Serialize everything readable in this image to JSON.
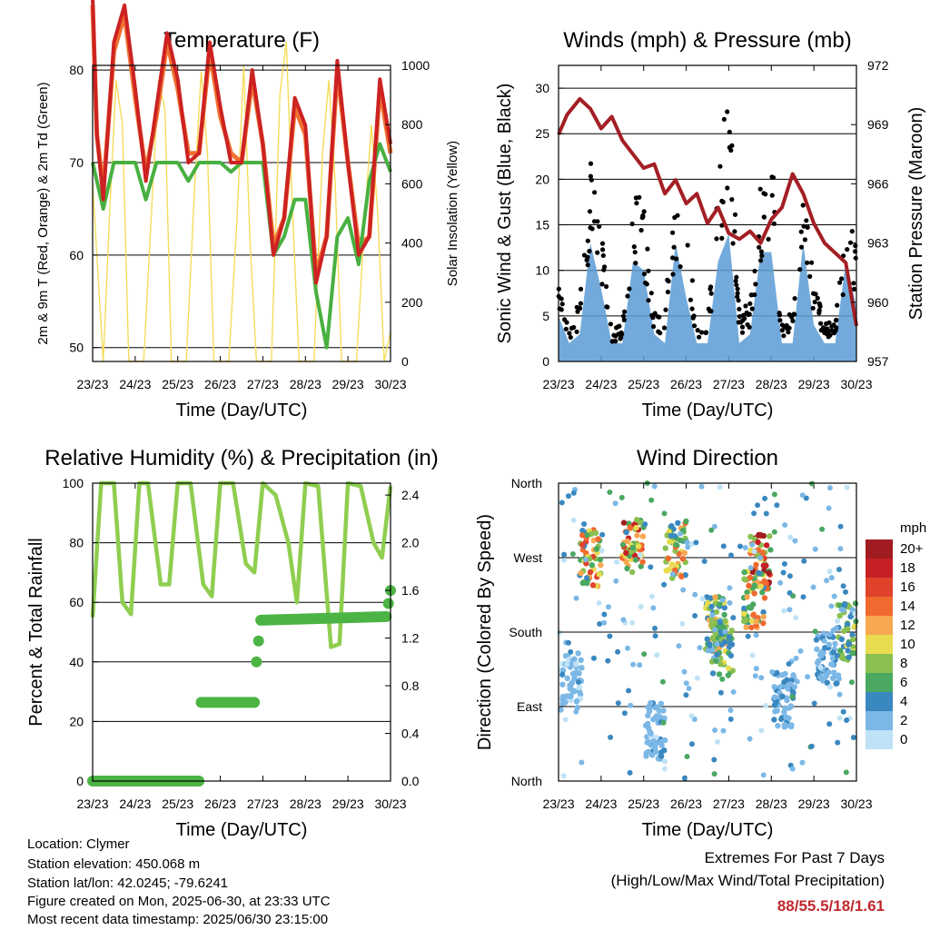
{
  "chart_data": [
    {
      "type": "line",
      "title": "Temperature (F)",
      "xlabel": "Time (Day/UTC)",
      "ylabel": "2m & 9m T (Red, Orange) & 2m Td (Green)",
      "y2label": "Solar Insolation (Yellow)",
      "x_ticks": [
        "23/23",
        "24/23",
        "25/23",
        "26/23",
        "27/23",
        "28/23",
        "29/23",
        "30/23"
      ],
      "xlim": [
        0,
        7
      ],
      "ylim": [
        48.5,
        80.5
      ],
      "y_ticks": [
        50,
        60,
        70,
        80
      ],
      "y2lim": [
        0,
        1000
      ],
      "y2_ticks": [
        0,
        200,
        400,
        600,
        800,
        1000
      ],
      "colors": {
        "t2m": "#cc2222",
        "t9m": "#f07030",
        "td2m": "#48b040",
        "solar": "#f5dc5a"
      },
      "series": [
        {
          "name": "2m T",
          "x": [
            0,
            0.1,
            0.25,
            0.5,
            0.75,
            1.0,
            1.25,
            1.5,
            1.75,
            2.0,
            2.25,
            2.5,
            2.75,
            3.0,
            3.25,
            3.5,
            3.75,
            4.0,
            4.25,
            4.5,
            4.75,
            5.0,
            5.25,
            5.5,
            5.75,
            6.0,
            6.25,
            6.5,
            6.75,
            7.0
          ],
          "values": [
            88,
            73,
            66,
            83,
            87,
            78,
            68,
            76,
            84,
            79,
            70,
            71,
            83,
            76,
            70,
            70,
            80,
            72,
            60,
            64,
            77,
            74,
            57,
            62,
            81,
            70,
            60,
            62,
            79,
            72
          ]
        },
        {
          "name": "9m T",
          "x": [
            0,
            0.1,
            0.25,
            0.5,
            0.75,
            1.0,
            1.25,
            1.5,
            1.75,
            2.0,
            2.25,
            2.5,
            2.75,
            3.0,
            3.25,
            3.5,
            3.75,
            4.0,
            4.25,
            4.5,
            4.75,
            5.0,
            5.25,
            5.5,
            5.75,
            6.0,
            6.25,
            6.5,
            6.75,
            7.0
          ],
          "values": [
            87,
            73,
            67,
            82,
            86,
            77,
            69,
            75,
            83,
            78,
            71,
            71,
            82,
            75,
            71,
            70,
            79,
            72,
            61,
            64,
            76,
            73,
            58,
            62,
            80,
            70,
            61,
            62,
            78,
            71
          ]
        },
        {
          "name": "2m Td",
          "x": [
            0,
            0.25,
            0.5,
            0.75,
            1.0,
            1.25,
            1.5,
            1.75,
            2.0,
            2.25,
            2.5,
            2.75,
            3.0,
            3.25,
            3.5,
            3.75,
            4.0,
            4.25,
            4.5,
            4.75,
            5.0,
            5.25,
            5.5,
            5.75,
            6.0,
            6.25,
            6.5,
            6.75,
            7.0
          ],
          "values": [
            70,
            65,
            70,
            70,
            70,
            66,
            70,
            70,
            70,
            68,
            70,
            70,
            70,
            69,
            70,
            70,
            70,
            60,
            62,
            66,
            66,
            56,
            50,
            62,
            64,
            59,
            68,
            72,
            69
          ]
        },
        {
          "name": "Solar Insolation",
          "axis": "y2",
          "x": [
            0,
            0.25,
            0.4,
            0.55,
            0.7,
            0.85,
            1.2,
            1.4,
            1.55,
            1.7,
            1.85,
            2.2,
            2.4,
            2.55,
            2.7,
            2.85,
            3.2,
            3.4,
            3.55,
            3.7,
            3.85,
            4.2,
            4.4,
            4.55,
            4.7,
            4.85,
            5.2,
            5.4,
            5.55,
            5.7,
            5.85,
            6.2,
            6.4,
            6.55,
            6.7,
            6.85,
            7.0
          ],
          "values": [
            600,
            0,
            500,
            950,
            800,
            0,
            0,
            550,
            950,
            850,
            0,
            0,
            600,
            980,
            700,
            0,
            0,
            500,
            1000,
            400,
            0,
            0,
            900,
            1080,
            500,
            0,
            0,
            700,
            950,
            600,
            0,
            0,
            500,
            800,
            500,
            0,
            100
          ]
        }
      ]
    },
    {
      "type": "scatter",
      "title": "Winds (mph) & Pressure (mb)",
      "xlabel": "Time (Day/UTC)",
      "ylabel": "Sonic Wind & Gust (Blue, Black)",
      "y2label": "Station Pressure (Maroon)",
      "x_ticks": [
        "23/23",
        "24/23",
        "25/23",
        "26/23",
        "27/23",
        "28/23",
        "29/23",
        "30/23"
      ],
      "xlim": [
        0,
        7
      ],
      "ylim": [
        0,
        32.5
      ],
      "y_ticks": [
        0,
        5,
        10,
        15,
        20,
        25,
        30
      ],
      "y2lim": [
        957,
        972
      ],
      "y2_ticks": [
        957,
        960,
        963,
        966,
        969,
        972
      ],
      "colors": {
        "wind": "#5b9bd5",
        "gust": "#000000",
        "pressure": "#a31f24"
      },
      "series": [
        {
          "name": "Sonic Wind",
          "x": [
            0,
            0.25,
            0.5,
            0.75,
            1.0,
            1.25,
            1.5,
            1.75,
            2.0,
            2.25,
            2.5,
            2.75,
            3.0,
            3.25,
            3.5,
            3.75,
            4.0,
            4.25,
            4.5,
            4.75,
            5.0,
            5.25,
            5.5,
            5.75,
            6.0,
            6.25,
            6.5,
            6.75,
            7.0
          ],
          "values": [
            5,
            2,
            3,
            13,
            8,
            2,
            2,
            11,
            10,
            3,
            2,
            13,
            7,
            2,
            2,
            11,
            14,
            2,
            3,
            12,
            12,
            2,
            2,
            13,
            4,
            2,
            2,
            11,
            6
          ]
        },
        {
          "name": "Gust",
          "x": [
            0,
            0.25,
            0.5,
            0.75,
            1.0,
            1.25,
            1.5,
            1.75,
            2.0,
            2.25,
            2.5,
            2.75,
            3.0,
            3.25,
            3.5,
            3.75,
            4.0,
            4.25,
            4.5,
            4.75,
            5.0,
            5.25,
            5.5,
            5.75,
            6.0,
            6.25,
            6.5,
            6.75,
            7.0
          ],
          "values": [
            10,
            4,
            6,
            20,
            15,
            3,
            4,
            17,
            16,
            5,
            5,
            19,
            14,
            4,
            4,
            17,
            31,
            5,
            6,
            18,
            22,
            4,
            5,
            20,
            8,
            4,
            4,
            15,
            12
          ]
        },
        {
          "name": "Station Pressure",
          "axis": "y2",
          "x": [
            0,
            0.2,
            0.5,
            0.75,
            1.0,
            1.25,
            1.5,
            1.75,
            2.0,
            2.25,
            2.5,
            2.75,
            3.0,
            3.25,
            3.5,
            3.75,
            4.0,
            4.25,
            4.5,
            4.75,
            5.0,
            5.25,
            5.5,
            5.75,
            6.0,
            6.25,
            6.5,
            6.75,
            7.0
          ],
          "values": [
            968.5,
            969.5,
            970.3,
            969.8,
            968.8,
            969.4,
            968.2,
            967.5,
            966.8,
            967.0,
            965.5,
            966.2,
            965.0,
            965.5,
            964.0,
            964.8,
            963.5,
            963.2,
            963.6,
            963.0,
            964.2,
            964.8,
            966.5,
            965.5,
            964.0,
            963.0,
            962.5,
            962.0,
            958.8
          ]
        }
      ]
    },
    {
      "type": "line",
      "title": "Relative Humidity (%) & Precipitation (in)",
      "xlabel": "Time (Day/UTC)",
      "ylabel": "Percent & Total Rainfall",
      "x_ticks": [
        "23/23",
        "24/23",
        "25/23",
        "26/23",
        "27/23",
        "28/23",
        "29/23",
        "30/23"
      ],
      "xlim": [
        0,
        7
      ],
      "ylim": [
        0,
        100
      ],
      "y_ticks": [
        0,
        20,
        40,
        60,
        80,
        100
      ],
      "y2lim": [
        0,
        2.5
      ],
      "y2_ticks": [
        "0.0",
        "0.4",
        "0.8",
        "1.2",
        "1.6",
        "2.0",
        "2.4"
      ],
      "colors": {
        "rh": "#8fce50",
        "precip": "#4cb445"
      },
      "series": [
        {
          "name": "Relative Humidity",
          "x": [
            0,
            0.2,
            0.5,
            0.7,
            0.9,
            1.1,
            1.3,
            1.6,
            1.8,
            2.0,
            2.3,
            2.6,
            2.8,
            3.0,
            3.3,
            3.6,
            3.8,
            4.0,
            4.3,
            4.6,
            4.8,
            5.0,
            5.3,
            5.6,
            5.8,
            6.0,
            6.3,
            6.6,
            6.8,
            7.0
          ],
          "values": [
            55,
            100,
            100,
            60,
            56,
            100,
            100,
            66,
            66,
            100,
            100,
            66,
            62,
            100,
            100,
            73,
            70,
            100,
            96,
            80,
            60,
            100,
            99,
            45,
            46,
            100,
            99,
            80,
            75,
            99
          ]
        },
        {
          "name": "Total Rainfall",
          "axis": "y2",
          "x": [
            0,
            2.5,
            2.52,
            2.7,
            3.8,
            3.85,
            3.95,
            6.9,
            7.0
          ],
          "values": [
            0,
            0,
            0.66,
            0.66,
            0.66,
            1.0,
            1.35,
            1.38,
            1.6
          ]
        }
      ]
    },
    {
      "type": "scatter",
      "title": "Wind Direction",
      "xlabel": "Time (Day/UTC)",
      "ylabel": "Direction (Colored By Speed)",
      "x_ticks": [
        "23/23",
        "24/23",
        "25/23",
        "26/23",
        "27/23",
        "28/23",
        "29/23",
        "30/23"
      ],
      "xlim": [
        0,
        7
      ],
      "y_ticks": [
        "North",
        "East",
        "South",
        "West",
        "North"
      ],
      "ylim": [
        0,
        360
      ],
      "colorbar": {
        "title": "mph",
        "labels": [
          "20+",
          "18",
          "16",
          "14",
          "12",
          "10",
          "8",
          "6",
          "4",
          "2",
          "0"
        ],
        "colors": [
          "#a01c20",
          "#c62026",
          "#e0422b",
          "#f06a30",
          "#f8a850",
          "#e8dc50",
          "#8ac050",
          "#4aa860",
          "#3a88c0",
          "#7cb8e6",
          "#c0e2f6"
        ]
      },
      "clusters": [
        {
          "x": 0.75,
          "dir": 270,
          "speed": 14
        },
        {
          "x": 1.75,
          "dir": 285,
          "speed": 16
        },
        {
          "x": 2.75,
          "dir": 280,
          "speed": 12
        },
        {
          "x": 3.7,
          "dir": 190,
          "speed": 10
        },
        {
          "x": 3.85,
          "dir": 160,
          "speed": 8
        },
        {
          "x": 4.75,
          "dir": 265,
          "speed": 18
        },
        {
          "x": 4.6,
          "dir": 220,
          "speed": 12
        },
        {
          "x": 6.8,
          "dir": 180,
          "speed": 8
        },
        {
          "x": 0.3,
          "dir": 120,
          "speed": 2
        },
        {
          "x": 2.3,
          "dir": 60,
          "speed": 3
        },
        {
          "x": 5.3,
          "dir": 100,
          "speed": 4
        },
        {
          "x": 6.3,
          "dir": 150,
          "speed": 4
        }
      ]
    }
  ],
  "footer": {
    "location": "Location: Clymer",
    "elevation": "Station elevation: 450.068 m",
    "latlon": "Station lat/lon: 42.0245; -79.6241",
    "created": "Figure created on Mon, 2025-06-30, at 23:33 UTC",
    "recent": "Most recent data timestamp: 2025/06/30 23:15:00"
  },
  "extremes": {
    "title": "Extremes For Past 7 Days",
    "subtitle": "(High/Low/Max Wind/Total Precipitation)",
    "value": "88/55.5/18/1.61"
  }
}
